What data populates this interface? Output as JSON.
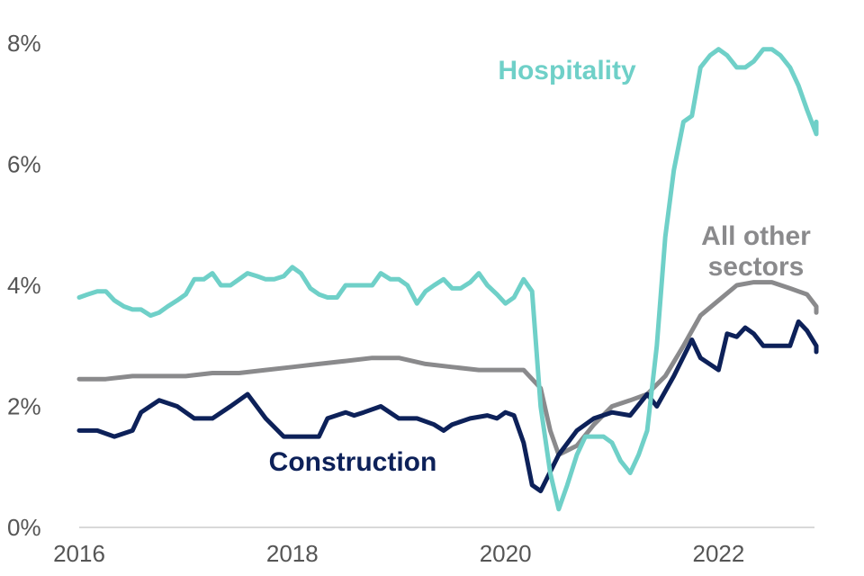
{
  "chart_data": {
    "type": "line",
    "title": "",
    "xlabel": "",
    "ylabel": "",
    "ylim": [
      0,
      8
    ],
    "xlim": [
      2016,
      2022.9
    ],
    "y_ticks": [
      {
        "value": 0,
        "label": "0%"
      },
      {
        "value": 2,
        "label": "2%"
      },
      {
        "value": 4,
        "label": "4%"
      },
      {
        "value": 6,
        "label": "6%"
      },
      {
        "value": 8,
        "label": "8%"
      }
    ],
    "x_ticks": [
      {
        "value": 2016,
        "label": "2016"
      },
      {
        "value": 2018,
        "label": "2018"
      },
      {
        "value": 2020,
        "label": "2020"
      },
      {
        "value": 2022,
        "label": "2022"
      }
    ],
    "grid": false,
    "legend": "inline labels",
    "series": [
      {
        "name": "Hospitality",
        "label_lines": [
          "Hospitality"
        ],
        "color": "#6fd0c8",
        "points": [
          [
            2016.0,
            3.8
          ],
          [
            2016.08,
            3.85
          ],
          [
            2016.17,
            3.9
          ],
          [
            2016.25,
            3.9
          ],
          [
            2016.33,
            3.75
          ],
          [
            2016.42,
            3.65
          ],
          [
            2016.5,
            3.6
          ],
          [
            2016.58,
            3.6
          ],
          [
            2016.67,
            3.5
          ],
          [
            2016.75,
            3.55
          ],
          [
            2016.83,
            3.65
          ],
          [
            2016.92,
            3.75
          ],
          [
            2017.0,
            3.85
          ],
          [
            2017.08,
            4.1
          ],
          [
            2017.17,
            4.1
          ],
          [
            2017.25,
            4.2
          ],
          [
            2017.33,
            4.0
          ],
          [
            2017.42,
            4.0
          ],
          [
            2017.5,
            4.1
          ],
          [
            2017.58,
            4.2
          ],
          [
            2017.67,
            4.15
          ],
          [
            2017.75,
            4.1
          ],
          [
            2017.83,
            4.1
          ],
          [
            2017.92,
            4.15
          ],
          [
            2018.0,
            4.3
          ],
          [
            2018.08,
            4.2
          ],
          [
            2018.17,
            3.95
          ],
          [
            2018.25,
            3.85
          ],
          [
            2018.33,
            3.8
          ],
          [
            2018.42,
            3.8
          ],
          [
            2018.5,
            4.0
          ],
          [
            2018.58,
            4.0
          ],
          [
            2018.67,
            4.0
          ],
          [
            2018.75,
            4.0
          ],
          [
            2018.83,
            4.2
          ],
          [
            2018.92,
            4.1
          ],
          [
            2019.0,
            4.1
          ],
          [
            2019.08,
            4.0
          ],
          [
            2019.17,
            3.7
          ],
          [
            2019.25,
            3.9
          ],
          [
            2019.33,
            4.0
          ],
          [
            2019.42,
            4.1
          ],
          [
            2019.5,
            3.95
          ],
          [
            2019.58,
            3.95
          ],
          [
            2019.67,
            4.05
          ],
          [
            2019.75,
            4.2
          ],
          [
            2019.83,
            4.0
          ],
          [
            2019.92,
            3.85
          ],
          [
            2020.0,
            3.7
          ],
          [
            2020.08,
            3.8
          ],
          [
            2020.17,
            4.1
          ],
          [
            2020.25,
            3.9
          ],
          [
            2020.33,
            2.0
          ],
          [
            2020.42,
            0.9
          ],
          [
            2020.5,
            0.3
          ],
          [
            2020.58,
            0.7
          ],
          [
            2020.67,
            1.2
          ],
          [
            2020.75,
            1.5
          ],
          [
            2020.83,
            1.5
          ],
          [
            2020.92,
            1.5
          ],
          [
            2021.0,
            1.4
          ],
          [
            2021.08,
            1.1
          ],
          [
            2021.17,
            0.9
          ],
          [
            2021.25,
            1.2
          ],
          [
            2021.33,
            1.6
          ],
          [
            2021.42,
            3.0
          ],
          [
            2021.5,
            4.8
          ],
          [
            2021.58,
            5.9
          ],
          [
            2021.67,
            6.7
          ],
          [
            2021.75,
            6.8
          ],
          [
            2021.83,
            7.6
          ],
          [
            2021.92,
            7.8
          ],
          [
            2022.0,
            7.9
          ],
          [
            2022.08,
            7.8
          ],
          [
            2022.17,
            7.6
          ],
          [
            2022.25,
            7.6
          ],
          [
            2022.33,
            7.7
          ],
          [
            2022.42,
            7.9
          ],
          [
            2022.5,
            7.9
          ],
          [
            2022.58,
            7.8
          ],
          [
            2022.67,
            7.6
          ],
          [
            2022.75,
            7.3
          ],
          [
            2022.83,
            6.9
          ],
          [
            2022.92,
            6.5
          ],
          [
            2023.0,
            6.7
          ],
          [
            2023.08,
            6.6
          ]
        ]
      },
      {
        "name": "All other sectors",
        "label_lines": [
          "All other",
          "sectors"
        ],
        "color": "#8a8a8c",
        "points": [
          [
            2016.0,
            2.45
          ],
          [
            2016.25,
            2.45
          ],
          [
            2016.5,
            2.5
          ],
          [
            2016.75,
            2.5
          ],
          [
            2017.0,
            2.5
          ],
          [
            2017.25,
            2.55
          ],
          [
            2017.5,
            2.55
          ],
          [
            2017.75,
            2.6
          ],
          [
            2018.0,
            2.65
          ],
          [
            2018.25,
            2.7
          ],
          [
            2018.5,
            2.75
          ],
          [
            2018.75,
            2.8
          ],
          [
            2019.0,
            2.8
          ],
          [
            2019.25,
            2.7
          ],
          [
            2019.5,
            2.65
          ],
          [
            2019.75,
            2.6
          ],
          [
            2020.0,
            2.6
          ],
          [
            2020.17,
            2.6
          ],
          [
            2020.33,
            2.3
          ],
          [
            2020.42,
            1.6
          ],
          [
            2020.5,
            1.2
          ],
          [
            2020.67,
            1.35
          ],
          [
            2020.83,
            1.7
          ],
          [
            2021.0,
            2.0
          ],
          [
            2021.17,
            2.1
          ],
          [
            2021.33,
            2.2
          ],
          [
            2021.5,
            2.5
          ],
          [
            2021.67,
            3.0
          ],
          [
            2021.83,
            3.5
          ],
          [
            2022.0,
            3.75
          ],
          [
            2022.17,
            4.0
          ],
          [
            2022.33,
            4.05
          ],
          [
            2022.5,
            4.05
          ],
          [
            2022.67,
            3.95
          ],
          [
            2022.83,
            3.85
          ],
          [
            2023.0,
            3.65
          ],
          [
            2023.08,
            3.55
          ]
        ]
      },
      {
        "name": "Construction",
        "label_lines": [
          "Construction"
        ],
        "color": "#0d2159",
        "points": [
          [
            2016.0,
            1.6
          ],
          [
            2016.17,
            1.6
          ],
          [
            2016.33,
            1.5
          ],
          [
            2016.5,
            1.6
          ],
          [
            2016.58,
            1.9
          ],
          [
            2016.75,
            2.1
          ],
          [
            2016.92,
            2.0
          ],
          [
            2017.08,
            1.8
          ],
          [
            2017.25,
            1.8
          ],
          [
            2017.42,
            2.0
          ],
          [
            2017.58,
            2.2
          ],
          [
            2017.75,
            1.8
          ],
          [
            2017.92,
            1.5
          ],
          [
            2018.08,
            1.5
          ],
          [
            2018.25,
            1.5
          ],
          [
            2018.33,
            1.8
          ],
          [
            2018.5,
            1.9
          ],
          [
            2018.58,
            1.85
          ],
          [
            2018.67,
            1.9
          ],
          [
            2018.83,
            2.0
          ],
          [
            2019.0,
            1.8
          ],
          [
            2019.17,
            1.8
          ],
          [
            2019.33,
            1.7
          ],
          [
            2019.42,
            1.6
          ],
          [
            2019.5,
            1.7
          ],
          [
            2019.67,
            1.8
          ],
          [
            2019.83,
            1.85
          ],
          [
            2019.92,
            1.8
          ],
          [
            2020.0,
            1.9
          ],
          [
            2020.08,
            1.85
          ],
          [
            2020.17,
            1.4
          ],
          [
            2020.25,
            0.7
          ],
          [
            2020.33,
            0.6
          ],
          [
            2020.5,
            1.2
          ],
          [
            2020.67,
            1.6
          ],
          [
            2020.83,
            1.8
          ],
          [
            2021.0,
            1.9
          ],
          [
            2021.17,
            1.85
          ],
          [
            2021.33,
            2.2
          ],
          [
            2021.42,
            2.0
          ],
          [
            2021.58,
            2.5
          ],
          [
            2021.75,
            3.1
          ],
          [
            2021.83,
            2.8
          ],
          [
            2022.0,
            2.6
          ],
          [
            2022.08,
            3.2
          ],
          [
            2022.17,
            3.15
          ],
          [
            2022.25,
            3.3
          ],
          [
            2022.33,
            3.2
          ],
          [
            2022.42,
            3.0
          ],
          [
            2022.58,
            3.0
          ],
          [
            2022.67,
            3.0
          ],
          [
            2022.75,
            3.4
          ],
          [
            2022.83,
            3.25
          ],
          [
            2022.92,
            3.0
          ],
          [
            2023.0,
            2.9
          ]
        ]
      }
    ]
  }
}
